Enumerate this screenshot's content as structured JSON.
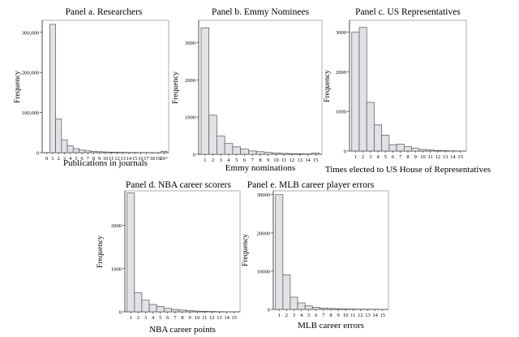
{
  "figure": {
    "colors": {
      "bar_fill": "#e2e2e6",
      "bar_stroke": "#555555",
      "axis": "#333333"
    }
  },
  "chart_data": [
    {
      "type": "bar",
      "panel": "a",
      "title": "Panel a. Researchers",
      "xlabel": "Publications in journals",
      "ylabel": "Frequency",
      "categories": [
        "0",
        "1",
        "2",
        "3",
        "4",
        "5",
        "6",
        "7",
        "8",
        "9",
        "10",
        "11",
        "12",
        "13",
        "14",
        "15",
        "16",
        "17",
        "18",
        "19",
        "20+"
      ],
      "values": [
        0,
        320000,
        84000,
        32000,
        17000,
        10000,
        6500,
        4500,
        3200,
        2400,
        1800,
        1400,
        1100,
        900,
        700,
        600,
        500,
        420,
        360,
        300,
        3500
      ],
      "ylim": [
        0,
        330000
      ],
      "yticks": [
        0,
        100000,
        200000,
        300000
      ],
      "ytick_labels": [
        "0",
        "100,000",
        "200,000",
        "300,000"
      ]
    },
    {
      "type": "bar",
      "panel": "b",
      "title": "Panel b. Emmy Nominees",
      "xlabel": "Emmy nominations",
      "ylabel": "Frequency",
      "categories": [
        "1",
        "2",
        "3",
        "4",
        "5",
        "6",
        "7",
        "8",
        "9",
        "10",
        "11",
        "12",
        "13",
        "14",
        "15"
      ],
      "values": [
        3400,
        1050,
        490,
        290,
        200,
        140,
        90,
        70,
        50,
        35,
        25,
        18,
        14,
        10,
        30
      ],
      "ylim": [
        0,
        3600
      ],
      "yticks": [
        0,
        1000,
        2000,
        3000
      ],
      "ytick_labels": [
        "0",
        "1000",
        "2000",
        "3000"
      ]
    },
    {
      "type": "bar",
      "panel": "c",
      "title": "Panel c. US Representatives",
      "xlabel": "Times elected to US House of Representatives",
      "ylabel": "Frequency",
      "categories": [
        "1",
        "2",
        "3",
        "4",
        "5",
        "6",
        "7",
        "8",
        "9",
        "10",
        "11",
        "12",
        "13",
        "14",
        "15"
      ],
      "values": [
        3000,
        3120,
        1230,
        660,
        400,
        160,
        175,
        110,
        70,
        40,
        25,
        15,
        10,
        5,
        3
      ],
      "ylim": [
        0,
        3300
      ],
      "yticks": [
        0,
        1000,
        2000,
        3000
      ],
      "ytick_labels": [
        "0",
        "1000",
        "2000",
        "3000"
      ]
    },
    {
      "type": "bar",
      "panel": "d",
      "title": "Panel d. NBA career scorers",
      "xlabel": "NBA career points",
      "ylabel": "Frequency",
      "categories": [
        "1",
        "2",
        "3",
        "4",
        "5",
        "6",
        "7",
        "8",
        "9",
        "10",
        "11",
        "12",
        "13",
        "14",
        "15"
      ],
      "values": [
        2750,
        440,
        270,
        170,
        120,
        80,
        55,
        40,
        25,
        18,
        12,
        8,
        5,
        3,
        2
      ],
      "ylim": [
        0,
        2800
      ],
      "yticks": [
        0,
        1000,
        2000
      ],
      "ytick_labels": [
        "0",
        "1000",
        "2000"
      ]
    },
    {
      "type": "bar",
      "panel": "e",
      "title": "Panel e. MLB career player errors",
      "xlabel": "MLB career errors",
      "ylabel": "Frequency",
      "categories": [
        "1",
        "2",
        "3",
        "4",
        "5",
        "6",
        "7",
        "8",
        "9",
        "10",
        "11",
        "12",
        "13",
        "14",
        "15"
      ],
      "values": [
        30000,
        9000,
        3200,
        1700,
        900,
        550,
        350,
        250,
        170,
        120,
        90,
        70,
        50,
        40,
        30
      ],
      "ylim": [
        0,
        31000
      ],
      "yticks": [
        0,
        10000,
        20000,
        30000
      ],
      "ytick_labels": [
        "0",
        "10000",
        "20000",
        "30000"
      ]
    }
  ]
}
